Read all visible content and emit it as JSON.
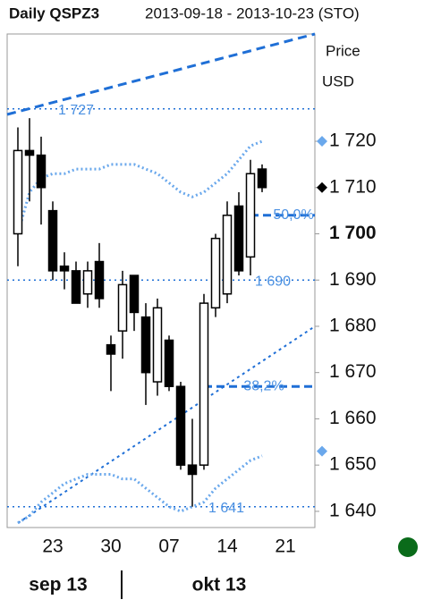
{
  "chart_data": {
    "type": "candlestick",
    "title": "Daily QSPZ3",
    "subtitle": "2013-09-18 - 2013-10-23 (STO)",
    "y_label": "Price",
    "y_unit": "USD",
    "months": [
      "sep 13",
      "okt 13"
    ],
    "categories": [
      null,
      null,
      null,
      "23",
      null,
      null,
      null,
      null,
      "30",
      null,
      null,
      null,
      null,
      "07",
      null,
      null,
      null,
      null,
      "14",
      null,
      null,
      null,
      null,
      "21",
      null,
      null
    ],
    "open": [
      1700,
      1718,
      1717,
      1705,
      1693,
      1692,
      1687,
      1694,
      1676,
      1679,
      1691,
      1682,
      1668,
      1677,
      1667,
      1650,
      1650,
      1684,
      1687,
      1706,
      1695,
      1714,
      null,
      null,
      null,
      null
    ],
    "high": [
      1723,
      1725,
      1721,
      1707,
      1696,
      1694,
      1694,
      1698,
      1678,
      1692,
      1691,
      1685,
      1686,
      1678,
      1668,
      1660,
      1687,
      1700,
      1707,
      1709,
      1716,
      1715,
      null,
      null,
      null,
      null
    ],
    "low": [
      1693,
      1707,
      1702,
      1690,
      1688,
      1685,
      1684,
      1684,
      1666,
      1673,
      1679,
      1663,
      1665,
      1666,
      1649,
      1641,
      1649,
      1682,
      1685,
      1691,
      1691,
      1709,
      null,
      null,
      null,
      null
    ],
    "close": [
      1718,
      1717,
      1710,
      1692,
      1692,
      1685,
      1692,
      1686,
      1674,
      1689,
      1683,
      1670,
      1684,
      1667,
      1650,
      1648,
      1685,
      1699,
      1704,
      1692,
      1713,
      1710,
      null,
      null,
      null,
      null
    ],
    "up_color": "#ffffff",
    "down_color": "#000000",
    "bands": [
      {
        "color": "#6aa8ec",
        "values": [
          1700,
          1709,
          1712,
          1713,
          1713,
          1714,
          1714,
          1714,
          1715,
          1715,
          1715,
          1714,
          1713,
          1711,
          1709,
          1708,
          1709,
          1711,
          1713,
          1716,
          1719,
          1720,
          null,
          null,
          null,
          null
        ]
      },
      {
        "color": "#6aa8ec",
        "values": [
          1637.5,
          1639,
          1642,
          1644,
          1646,
          1647,
          1648,
          1648,
          1648,
          1647,
          1647,
          1645,
          1643,
          1641,
          1640,
          1641,
          1642,
          1645,
          1647,
          1649,
          1651,
          1652,
          null,
          null,
          null,
          null
        ]
      }
    ],
    "levels": [
      {
        "text": "1 727",
        "price": 1727,
        "style": "dotted"
      },
      {
        "text": "1 690",
        "price": 1690,
        "style": "dotted"
      },
      {
        "text": "1 641",
        "price": 1641,
        "style": "dotted"
      },
      {
        "text": "50,0%",
        "price": 1704,
        "style": "dashed"
      },
      {
        "text": "38,2%",
        "price": 1667,
        "style": "dashed"
      }
    ],
    "axis_markers": [
      {
        "price": 1720,
        "color": "#6aa8ec"
      },
      {
        "price": 1710,
        "color": "#000000"
      },
      {
        "price": 1653,
        "color": "#6aa8ec"
      }
    ],
    "ylim": [
      1636.5,
      1743.2
    ],
    "yticks": [
      {
        "value": 1640,
        "label": "1 640"
      },
      {
        "value": 1650,
        "label": "1 650"
      },
      {
        "value": 1660,
        "label": "1 660"
      },
      {
        "value": 1670,
        "label": "1 670"
      },
      {
        "value": 1680,
        "label": "1 680"
      },
      {
        "value": 1690,
        "label": "1 690"
      },
      {
        "value": 1700,
        "label": "1 700"
      },
      {
        "value": 1710,
        "label": "1 710"
      },
      {
        "value": 1720,
        "label": "1 720"
      }
    ]
  }
}
